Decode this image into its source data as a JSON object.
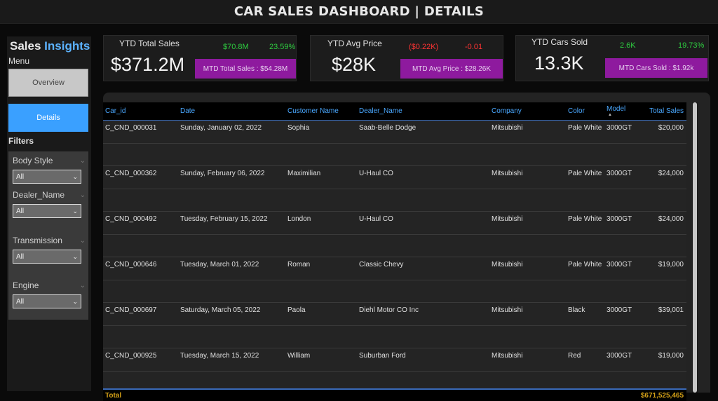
{
  "header": {
    "title": "CAR SALES DASHBOARD | DETAILS"
  },
  "sidebar": {
    "brand_part1": "Sales",
    "brand_part2": "Insights",
    "menu_label": "Menu",
    "nav": {
      "overview": "Overview",
      "details": "Details"
    },
    "filters_label": "Filters",
    "filters": [
      {
        "label": "Body Style",
        "value": "All"
      },
      {
        "label": "Dealer_Name",
        "value": "All"
      },
      {
        "label": "Transmission",
        "value": "All"
      },
      {
        "label": "Engine",
        "value": "All"
      }
    ]
  },
  "kpis": [
    {
      "title": "YTD Total Sales",
      "value": "$371.2M",
      "delta_abs": "$70.8M",
      "delta_pct": "23.59%",
      "mtd": "MTD Total Sales : $54.28M"
    },
    {
      "title": "YTD Avg Price",
      "value": "$28K",
      "delta_abs": "($0.22K)",
      "delta_pct": "-0.01",
      "mtd": "MTD Avg Price : $28.26K"
    },
    {
      "title": "YTD Cars Sold",
      "value": "13.3K",
      "delta_abs": "2.6K",
      "delta_pct": "19.73%",
      "mtd": "MTD Cars Sold : $1.92k"
    }
  ],
  "colors": {
    "accent": "#3aa0ff",
    "mtd_bg": "#8e1a9e",
    "positive": "#2ecc40",
    "negative": "#ff3333",
    "total": "#d4a017"
  },
  "table": {
    "columns": [
      "Car_id",
      "Date",
      "Customer Name",
      "Dealer_Name",
      "Company",
      "Color",
      "Model",
      "Total Sales"
    ],
    "rows": [
      {
        "car_id": "C_CND_000031",
        "date": "Sunday, January 02, 2022",
        "customer": "Sophia",
        "dealer": "Saab-Belle Dodge",
        "company": "Mitsubishi",
        "color": "Pale White",
        "model": "3000GT",
        "sales": "$20,000"
      },
      {
        "car_id": "C_CND_000362",
        "date": "Sunday, February 06, 2022",
        "customer": "Maximilian",
        "dealer": "U-Haul CO",
        "company": "Mitsubishi",
        "color": "Pale White",
        "model": "3000GT",
        "sales": "$24,000"
      },
      {
        "car_id": "C_CND_000492",
        "date": "Tuesday, February 15, 2022",
        "customer": "London",
        "dealer": "U-Haul CO",
        "company": "Mitsubishi",
        "color": "Pale White",
        "model": "3000GT",
        "sales": "$24,000"
      },
      {
        "car_id": "C_CND_000646",
        "date": "Tuesday, March 01, 2022",
        "customer": "Roman",
        "dealer": "Classic Chevy",
        "company": "Mitsubishi",
        "color": "Pale White",
        "model": "3000GT",
        "sales": "$19,000"
      },
      {
        "car_id": "C_CND_000697",
        "date": "Saturday, March 05, 2022",
        "customer": "Paola",
        "dealer": "Diehl Motor CO Inc",
        "company": "Mitsubishi",
        "color": "Black",
        "model": "3000GT",
        "sales": "$39,001"
      },
      {
        "car_id": "C_CND_000925",
        "date": "Tuesday, March 15, 2022",
        "customer": "William",
        "dealer": "Suburban Ford",
        "company": "Mitsubishi",
        "color": "Red",
        "model": "3000GT",
        "sales": "$19,000"
      }
    ],
    "total_label": "Total",
    "total_value": "$671,525,465"
  }
}
